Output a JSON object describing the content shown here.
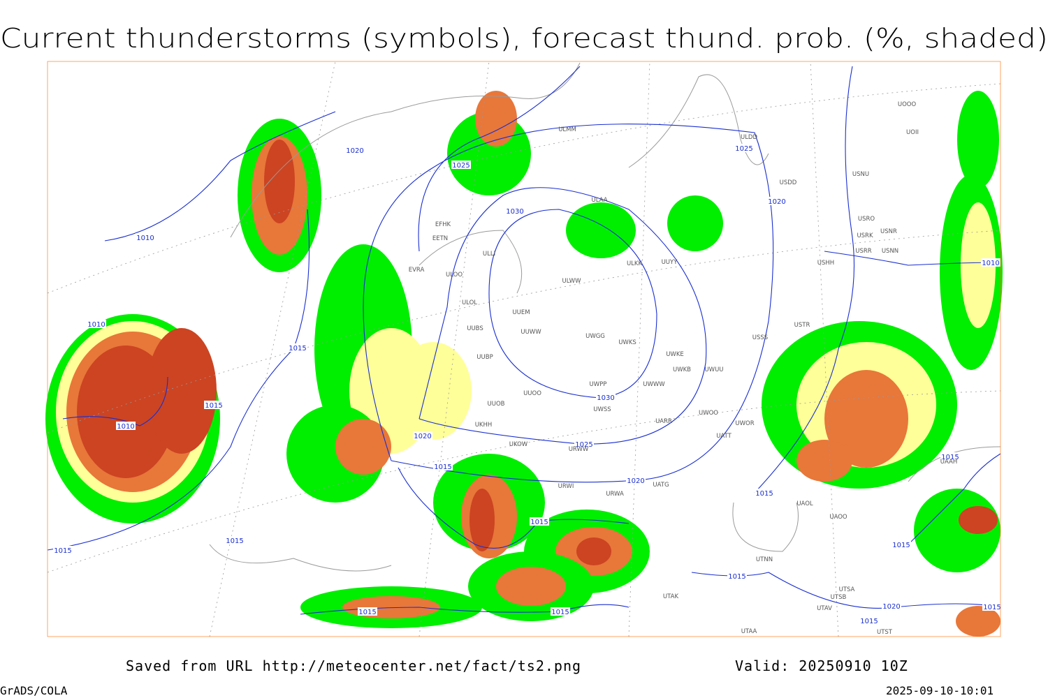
{
  "header": {
    "title": "Current thunderstorms (symbols), forecast thund. prob. (%, shaded)"
  },
  "map": {
    "isobar_labels": [
      "1020",
      "1025",
      "1030",
      "1025",
      "1020",
      "1010",
      "1010",
      "1015",
      "1015",
      "1010",
      "1030",
      "1025",
      "1020",
      "1015",
      "1020",
      "1015",
      "1015",
      "1010",
      "1015",
      "1015",
      "1015",
      "1015",
      "1015",
      "1015",
      "1015",
      "1020",
      "1015",
      "1015"
    ],
    "stations": [
      "ULMM",
      "ULAA",
      "ULDD",
      "USDD",
      "USNU",
      "UOOO",
      "UOII",
      "EFHK",
      "EETN",
      "ULLI",
      "EVRA",
      "ULOO",
      "ULOL",
      "UUEM",
      "ULWW",
      "ULKK",
      "UUYY",
      "USHH",
      "USTR",
      "USSS",
      "UWKS",
      "UWGG",
      "UUWW",
      "UUBS",
      "UUBP",
      "UUOO",
      "UUOB",
      "UWPP",
      "UWWW",
      "UWKE",
      "UWKB",
      "UWUU",
      "UWSS",
      "URWA",
      "UATG",
      "UAOL",
      "UAOO",
      "UTNN",
      "UTAK",
      "UTSA",
      "UTSB",
      "URWI",
      "UARR",
      "UWOO",
      "UWOR",
      "UATT",
      "USRR",
      "USNN",
      "USRK",
      "USNR",
      "USRO",
      "UKHH",
      "UKOW",
      "URWW",
      "UAAH",
      "UTAV",
      "UTST",
      "UTAA"
    ]
  },
  "footer": {
    "source": "Saved from URL http://meteocenter.net/fact/ts2.png",
    "valid": "Valid: 20250910 10Z",
    "software": "GrADS/COLA",
    "timestamp": "2025-09-10-10:01"
  }
}
